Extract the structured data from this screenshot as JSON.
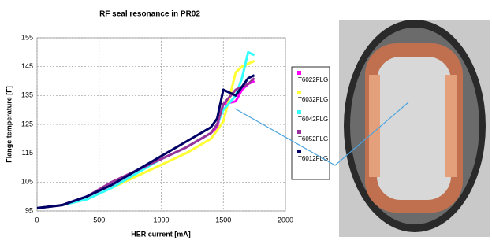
{
  "chart_data": {
    "type": "line",
    "title": "RF seal resonance in PR02",
    "x_label": "HER current [mA]",
    "y_label": "Flange temperature [F]",
    "x": [
      0,
      200,
      400,
      600,
      800,
      1000,
      1200,
      1400,
      1450,
      1500,
      1600,
      1650,
      1700,
      1750
    ],
    "series": [
      {
        "name": "T6022FLG",
        "color": "#ff00ff",
        "values": [
          96,
          97,
          100,
          104,
          109,
          113,
          117,
          122,
          124,
          132,
          133,
          137,
          139,
          140
        ]
      },
      {
        "name": "T6032FLG",
        "color": "#ffff33",
        "values": [
          96,
          97,
          99,
          103,
          107,
          111,
          115,
          120,
          123,
          126,
          143,
          145,
          146,
          147
        ]
      },
      {
        "name": "T6042FLG",
        "color": "#33ffff",
        "values": [
          96,
          97,
          99,
          103,
          108,
          113,
          117,
          122,
          125,
          130,
          135,
          141,
          150,
          149
        ]
      },
      {
        "name": "T6052FLG",
        "color": "#993399",
        "values": [
          96,
          97,
          100,
          105,
          109,
          113,
          117,
          122,
          125,
          132,
          137,
          138,
          139,
          141
        ]
      },
      {
        "name": "T6012FLG",
        "color": "#000066",
        "values": [
          96,
          97,
          100,
          104,
          109,
          114,
          119,
          124,
          127,
          137,
          135,
          138,
          141,
          142
        ]
      }
    ],
    "xlim": [
      0,
      2000
    ],
    "xticks": [
      0,
      500,
      1000,
      1500,
      2000
    ],
    "ylim": [
      95,
      155
    ],
    "yticks": [
      95,
      105,
      115,
      125,
      135,
      145,
      155
    ],
    "grid": true
  }
}
